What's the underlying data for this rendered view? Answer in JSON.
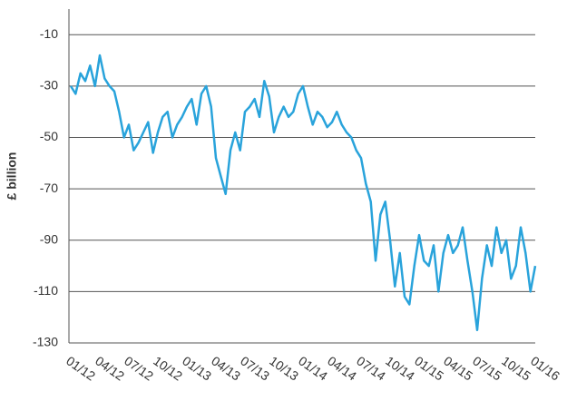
{
  "chart_data": {
    "type": "line",
    "y_label": "£ billion",
    "categories": [
      "01/12",
      null,
      null,
      null,
      null,
      null,
      "04/12",
      null,
      null,
      null,
      null,
      null,
      "07/12",
      null,
      null,
      null,
      null,
      null,
      "10/12",
      null,
      null,
      null,
      null,
      null,
      "01/13",
      null,
      null,
      null,
      null,
      null,
      "04/13",
      null,
      null,
      null,
      null,
      null,
      "07/13",
      null,
      null,
      null,
      null,
      null,
      "10/13",
      null,
      null,
      null,
      null,
      null,
      "01/14",
      null,
      null,
      null,
      null,
      null,
      "04/14",
      null,
      null,
      null,
      null,
      null,
      "07/14",
      null,
      null,
      null,
      null,
      null,
      "10/14",
      null,
      null,
      null,
      null,
      null,
      "01/15",
      null,
      null,
      null,
      null,
      null,
      "04/15",
      null,
      null,
      null,
      null,
      null,
      "07/15",
      null,
      null,
      null,
      null,
      null,
      "10/15",
      null,
      null,
      null,
      null,
      null,
      "01/16"
    ],
    "series": [
      {
        "color": "#29a3db",
        "values": [
          -30,
          -33,
          -25,
          -28,
          -22,
          -30,
          -18,
          -27,
          -30,
          -32,
          -40,
          -50,
          -45,
          -55,
          -52,
          -48,
          -44,
          -56,
          -48,
          -42,
          -40,
          -50,
          -45,
          -42,
          -38,
          -35,
          -45,
          -33,
          -30,
          -38,
          -58,
          -65,
          -72,
          -55,
          -48,
          -55,
          -40,
          -38,
          -35,
          -42,
          -28,
          -34,
          -48,
          -42,
          -38,
          -42,
          -40,
          -33,
          -30,
          -38,
          -45,
          -40,
          -42,
          -46,
          -44,
          -40,
          -45,
          -48,
          -50,
          -55,
          -58,
          -68,
          -75,
          -98,
          -80,
          -75,
          -90,
          -108,
          -95,
          -112,
          -115,
          -100,
          -88,
          -98,
          -100,
          -92,
          -110,
          -95,
          -88,
          -95,
          -92,
          -85,
          -98,
          -110,
          -125,
          -105,
          -92,
          -100,
          -85,
          -95,
          -90,
          -105,
          -100,
          -85,
          -95,
          -110,
          -100
        ]
      }
    ],
    "ylim": [
      -130,
      0
    ],
    "yticks": [
      -130,
      -110,
      -90,
      -70,
      -50,
      -30,
      -10
    ],
    "grid": true
  }
}
